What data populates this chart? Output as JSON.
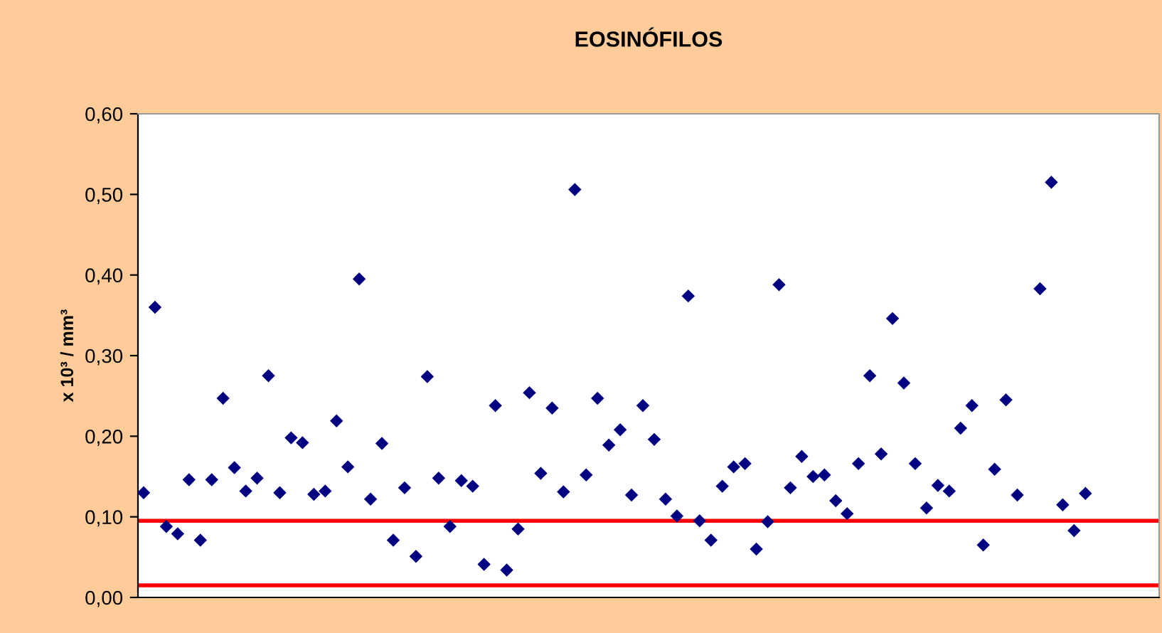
{
  "chart_data": {
    "type": "scatter",
    "title": "EOSINÓFILOS",
    "ylabel": "x 10³ / mm³",
    "categories": [
      null,
      null,
      null,
      null,
      null,
      null,
      null,
      null,
      null,
      null,
      null,
      null,
      null,
      null,
      null,
      null,
      null,
      null,
      null,
      null,
      null,
      null,
      null,
      null,
      null,
      null,
      null,
      null,
      null,
      null,
      null,
      null,
      null,
      null,
      null,
      null,
      null,
      null,
      null,
      null,
      null,
      null,
      null,
      null,
      null,
      null,
      null,
      null,
      null,
      null,
      null,
      null,
      null,
      null,
      null,
      null,
      null,
      null,
      null,
      null,
      null,
      null,
      null,
      null,
      null,
      null,
      null,
      null,
      null,
      null,
      null,
      null,
      null,
      null,
      null,
      null,
      null,
      null,
      null,
      null,
      null,
      null,
      null,
      null,
      null,
      null,
      null,
      null,
      null,
      null
    ],
    "series": [
      {
        "color": "#000080",
        "values": [
          0.13,
          0.36,
          0.088,
          0.079,
          0.146,
          0.071,
          0.146,
          0.247,
          0.161,
          0.132,
          0.148,
          0.275,
          0.13,
          0.198,
          0.192,
          0.128,
          0.132,
          0.219,
          0.162,
          0.395,
          0.122,
          0.191,
          0.071,
          0.136,
          0.051,
          0.274,
          0.148,
          0.088,
          0.145,
          0.138,
          0.041,
          0.238,
          0.034,
          0.085,
          0.254,
          0.154,
          0.235,
          0.131,
          0.506,
          0.152,
          0.247,
          0.189,
          0.208,
          0.127,
          0.238,
          0.196,
          0.122,
          0.101,
          0.374,
          0.095,
          0.071,
          0.138,
          0.162,
          0.166,
          0.06,
          0.094,
          0.388,
          0.136,
          0.175,
          0.15,
          0.152,
          0.12,
          0.104,
          0.166,
          0.275,
          0.178,
          0.346,
          0.266,
          0.166,
          0.111,
          0.139,
          0.132,
          0.21,
          0.238,
          0.065,
          0.159,
          0.245,
          0.127,
          null,
          0.383,
          0.515,
          0.115,
          0.083,
          0.129,
          null,
          null,
          null,
          null,
          null,
          null
        ]
      }
    ],
    "ylim": [
      0,
      0.6
    ],
    "yticks": [
      {
        "value": 0,
        "label": "0,00"
      },
      {
        "value": 0.1,
        "label": "0,10"
      },
      {
        "value": 0.2,
        "label": "0,20"
      },
      {
        "value": 0.3,
        "label": "0,30"
      },
      {
        "value": 0.4,
        "label": "0,40"
      },
      {
        "value": 0.5,
        "label": "0,50"
      },
      {
        "value": 0.6,
        "label": "0,60"
      }
    ],
    "tick_labels": "y",
    "marker": "diamond",
    "grid": false,
    "ref_lines": [
      {
        "axis": "y",
        "value": 0.095,
        "color": "#ff0000",
        "line_style": "solid"
      },
      {
        "axis": "y",
        "value": 0.015,
        "color": "#ff0000",
        "line_style": "solid"
      }
    ]
  }
}
